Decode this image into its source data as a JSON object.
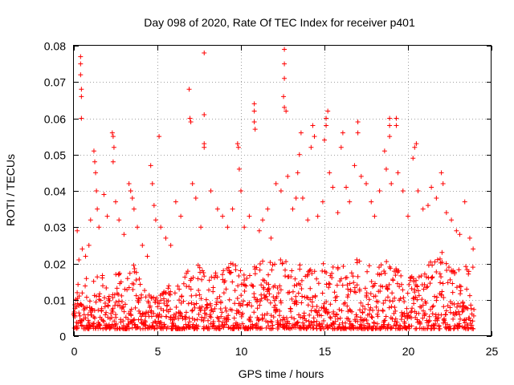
{
  "chart_data": {
    "type": "scatter",
    "title": "Day 098 of 2020, Rate Of TEC Index for receiver p401",
    "xlabel": "GPS time / hours",
    "ylabel": "ROTI / TECUs",
    "xlim": [
      0,
      25
    ],
    "ylim": [
      0,
      0.08
    ],
    "x_ticks": [
      {
        "value": 0,
        "label": "0"
      },
      {
        "value": 5,
        "label": "5"
      },
      {
        "value": 10,
        "label": "10"
      },
      {
        "value": 15,
        "label": "15"
      },
      {
        "value": 20,
        "label": "20"
      },
      {
        "value": 25,
        "label": "25"
      }
    ],
    "y_ticks": [
      {
        "value": 0,
        "label": "0"
      },
      {
        "value": 0.01,
        "label": "0.01"
      },
      {
        "value": 0.02,
        "label": "0.02"
      },
      {
        "value": 0.03,
        "label": "0.03"
      },
      {
        "value": 0.04,
        "label": "0.04"
      },
      {
        "value": 0.05,
        "label": "0.05"
      },
      {
        "value": 0.06,
        "label": "0.06"
      },
      {
        "value": 0.07,
        "label": "0.07"
      },
      {
        "value": 0.08,
        "label": "0.08"
      }
    ],
    "grid": true,
    "marker": "+",
    "color": "#ff0000",
    "series": [
      {
        "points": [
          [
            0.2,
            0.029
          ],
          [
            0.3,
            0.021
          ],
          [
            0.4,
            0.077
          ],
          [
            0.4,
            0.075
          ],
          [
            0.4,
            0.072
          ],
          [
            0.45,
            0.068
          ],
          [
            0.45,
            0.066
          ],
          [
            0.45,
            0.06
          ],
          [
            0.5,
            0.024
          ],
          [
            0.7,
            0.022
          ],
          [
            0.9,
            0.025
          ],
          [
            1.0,
            0.032
          ],
          [
            1.2,
            0.051
          ],
          [
            1.25,
            0.048
          ],
          [
            1.3,
            0.045
          ],
          [
            1.35,
            0.04
          ],
          [
            1.4,
            0.035
          ],
          [
            1.5,
            0.03
          ],
          [
            1.8,
            0.039
          ],
          [
            2.0,
            0.033
          ],
          [
            2.3,
            0.056
          ],
          [
            2.35,
            0.055
          ],
          [
            2.4,
            0.052
          ],
          [
            2.35,
            0.048
          ],
          [
            2.5,
            0.037
          ],
          [
            2.7,
            0.032
          ],
          [
            3.0,
            0.028
          ],
          [
            3.3,
            0.042
          ],
          [
            3.4,
            0.04
          ],
          [
            3.5,
            0.038
          ],
          [
            3.6,
            0.035
          ],
          [
            3.8,
            0.03
          ],
          [
            4.1,
            0.025
          ],
          [
            4.4,
            0.022
          ],
          [
            4.6,
            0.047
          ],
          [
            4.7,
            0.042
          ],
          [
            4.8,
            0.036
          ],
          [
            4.9,
            0.032
          ],
          [
            5.1,
            0.055
          ],
          [
            5.2,
            0.03
          ],
          [
            5.5,
            0.027
          ],
          [
            5.8,
            0.025
          ],
          [
            6.1,
            0.037
          ],
          [
            6.4,
            0.033
          ],
          [
            6.9,
            0.068
          ],
          [
            6.95,
            0.06
          ],
          [
            7.0,
            0.059
          ],
          [
            7.1,
            0.042
          ],
          [
            7.3,
            0.038
          ],
          [
            7.6,
            0.03
          ],
          [
            7.8,
            0.078
          ],
          [
            7.8,
            0.061
          ],
          [
            7.8,
            0.053
          ],
          [
            7.8,
            0.052
          ],
          [
            8.2,
            0.04
          ],
          [
            8.6,
            0.035
          ],
          [
            8.9,
            0.033
          ],
          [
            9.2,
            0.03
          ],
          [
            9.5,
            0.035
          ],
          [
            9.8,
            0.053
          ],
          [
            9.85,
            0.052
          ],
          [
            9.9,
            0.046
          ],
          [
            10.0,
            0.04
          ],
          [
            10.2,
            0.03
          ],
          [
            10.5,
            0.033
          ],
          [
            10.8,
            0.064
          ],
          [
            10.8,
            0.062
          ],
          [
            10.8,
            0.059
          ],
          [
            10.85,
            0.057
          ],
          [
            11.1,
            0.029
          ],
          [
            11.3,
            0.032
          ],
          [
            11.6,
            0.035
          ],
          [
            11.8,
            0.027
          ],
          [
            12.1,
            0.042
          ],
          [
            12.4,
            0.04
          ],
          [
            12.6,
            0.079
          ],
          [
            12.6,
            0.075
          ],
          [
            12.6,
            0.071
          ],
          [
            12.55,
            0.066
          ],
          [
            12.6,
            0.063
          ],
          [
            12.7,
            0.062
          ],
          [
            12.8,
            0.044
          ],
          [
            13.1,
            0.035
          ],
          [
            13.3,
            0.038
          ],
          [
            13.6,
            0.056
          ],
          [
            13.5,
            0.05
          ],
          [
            13.4,
            0.045
          ],
          [
            13.7,
            0.038
          ],
          [
            14.0,
            0.032
          ],
          [
            14.3,
            0.058
          ],
          [
            14.4,
            0.055
          ],
          [
            14.2,
            0.052
          ],
          [
            14.6,
            0.033
          ],
          [
            14.9,
            0.037
          ],
          [
            15.1,
            0.06
          ],
          [
            15.2,
            0.062
          ],
          [
            15.1,
            0.058
          ],
          [
            15.0,
            0.054
          ],
          [
            15.3,
            0.045
          ],
          [
            15.5,
            0.041
          ],
          [
            15.8,
            0.034
          ],
          [
            16.1,
            0.056
          ],
          [
            16.0,
            0.052
          ],
          [
            16.3,
            0.041
          ],
          [
            16.5,
            0.037
          ],
          [
            16.8,
            0.047
          ],
          [
            17.0,
            0.059
          ],
          [
            17.0,
            0.056
          ],
          [
            17.2,
            0.044
          ],
          [
            17.5,
            0.042
          ],
          [
            17.8,
            0.037
          ],
          [
            18.0,
            0.033
          ],
          [
            18.3,
            0.04
          ],
          [
            18.6,
            0.051
          ],
          [
            18.7,
            0.046
          ],
          [
            18.9,
            0.06
          ],
          [
            18.9,
            0.058
          ],
          [
            18.9,
            0.055
          ],
          [
            19.0,
            0.042
          ],
          [
            19.3,
            0.06
          ],
          [
            19.3,
            0.058
          ],
          [
            19.4,
            0.045
          ],
          [
            19.7,
            0.04
          ],
          [
            20.0,
            0.033
          ],
          [
            20.3,
            0.049
          ],
          [
            20.4,
            0.052
          ],
          [
            20.5,
            0.053
          ],
          [
            20.6,
            0.04
          ],
          [
            20.9,
            0.035
          ],
          [
            21.2,
            0.036
          ],
          [
            21.4,
            0.041
          ],
          [
            21.7,
            0.038
          ],
          [
            22.0,
            0.045
          ],
          [
            22.1,
            0.042
          ],
          [
            22.3,
            0.034
          ],
          [
            22.6,
            0.032
          ],
          [
            22.9,
            0.029
          ],
          [
            23.1,
            0.028
          ],
          [
            23.4,
            0.037
          ],
          [
            23.7,
            0.027
          ],
          [
            23.9,
            0.024
          ]
        ],
        "baseline": {
          "x_start": 0,
          "x_end": 23.98,
          "x_step": 0.0833,
          "envelope": [
            [
              0,
              0.012
            ],
            [
              0.5,
              0.018
            ],
            [
              1.0,
              0.014
            ],
            [
              1.5,
              0.02
            ],
            [
              2.0,
              0.015
            ],
            [
              2.5,
              0.018
            ],
            [
              3.0,
              0.017
            ],
            [
              3.5,
              0.022
            ],
            [
              4.0,
              0.016
            ],
            [
              4.5,
              0.014
            ],
            [
              5.0,
              0.01
            ],
            [
              5.5,
              0.015
            ],
            [
              6.0,
              0.014
            ],
            [
              6.5,
              0.02
            ],
            [
              7.0,
              0.018
            ],
            [
              7.5,
              0.02
            ],
            [
              8.0,
              0.018
            ],
            [
              8.5,
              0.02
            ],
            [
              9.0,
              0.019
            ],
            [
              9.5,
              0.022
            ],
            [
              10.0,
              0.021
            ],
            [
              10.5,
              0.019
            ],
            [
              11.0,
              0.02
            ],
            [
              11.5,
              0.021
            ],
            [
              12.0,
              0.02
            ],
            [
              12.5,
              0.022
            ],
            [
              13.0,
              0.02
            ],
            [
              13.5,
              0.021
            ],
            [
              14.0,
              0.019
            ],
            [
              14.5,
              0.02
            ],
            [
              15.0,
              0.021
            ],
            [
              15.5,
              0.02
            ],
            [
              16.0,
              0.019
            ],
            [
              16.5,
              0.021
            ],
            [
              17.0,
              0.022
            ],
            [
              17.5,
              0.02
            ],
            [
              18.0,
              0.02
            ],
            [
              18.5,
              0.022
            ],
            [
              19.0,
              0.02
            ],
            [
              19.5,
              0.019
            ],
            [
              20.0,
              0.017
            ],
            [
              20.5,
              0.016
            ],
            [
              21.0,
              0.02
            ],
            [
              21.5,
              0.022
            ],
            [
              22.0,
              0.024
            ],
            [
              22.5,
              0.02
            ],
            [
              23.0,
              0.018
            ],
            [
              23.5,
              0.02
            ],
            [
              24.0,
              0.02
            ]
          ],
          "floor": 0.002
        }
      }
    ]
  }
}
